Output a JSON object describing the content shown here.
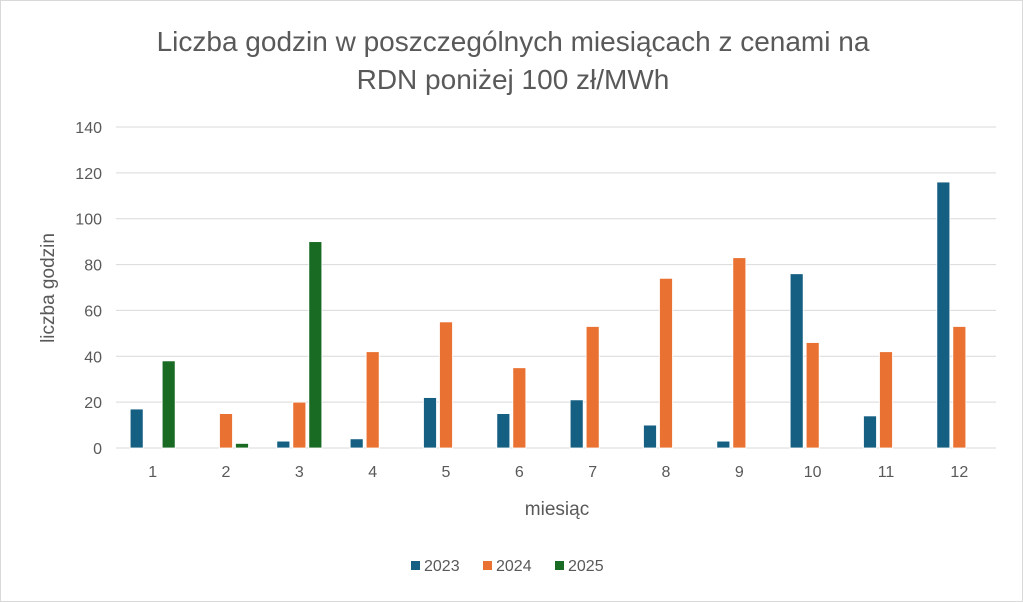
{
  "chart_data": {
    "type": "bar",
    "title_lines": [
      "Liczba godzin w poszczególnych miesiącach z   cenami na",
      "RDN poniżej 100 zł/MWh"
    ],
    "xlabel": "miesiąc",
    "ylabel": "liczba godzin",
    "ylim": [
      0,
      140
    ],
    "yticks": [
      0,
      20,
      40,
      60,
      80,
      100,
      120,
      140
    ],
    "grid": true,
    "legend_position": "bottom",
    "categories": [
      "1",
      "2",
      "3",
      "4",
      "5",
      "6",
      "7",
      "8",
      "9",
      "10",
      "11",
      "12"
    ],
    "series": [
      {
        "name": "2023",
        "color": "#156082",
        "values": [
          17,
          null,
          3,
          4,
          22,
          15,
          21,
          10,
          3,
          76,
          14,
          116
        ]
      },
      {
        "name": "2024",
        "color": "#E97132",
        "values": [
          null,
          15,
          20,
          42,
          55,
          35,
          53,
          74,
          83,
          46,
          42,
          53
        ]
      },
      {
        "name": "2025",
        "color": "#196B24",
        "values": [
          38,
          2,
          90,
          null,
          null,
          null,
          null,
          null,
          null,
          null,
          null,
          null
        ]
      }
    ]
  }
}
